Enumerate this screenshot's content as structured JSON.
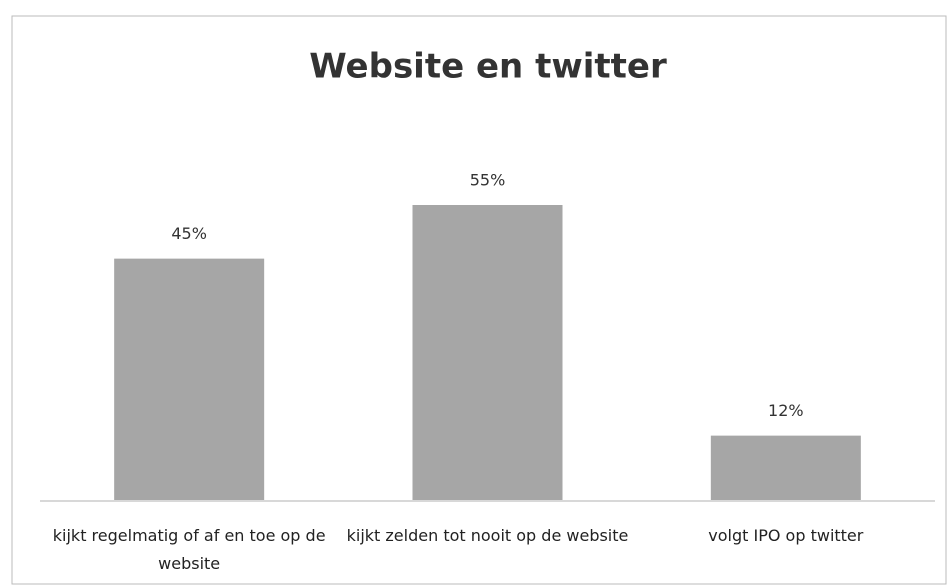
{
  "chart_data": {
    "type": "bar",
    "title": "Website en twitter",
    "categories": [
      "kijkt regelmatig of af en toe op de website",
      "kijkt zelden tot nooit op de website",
      "volgt IPO op twitter"
    ],
    "values": [
      45,
      55,
      12
    ],
    "value_labels": [
      "45%",
      "55%",
      "12%"
    ],
    "color": "#a6a6a6"
  }
}
